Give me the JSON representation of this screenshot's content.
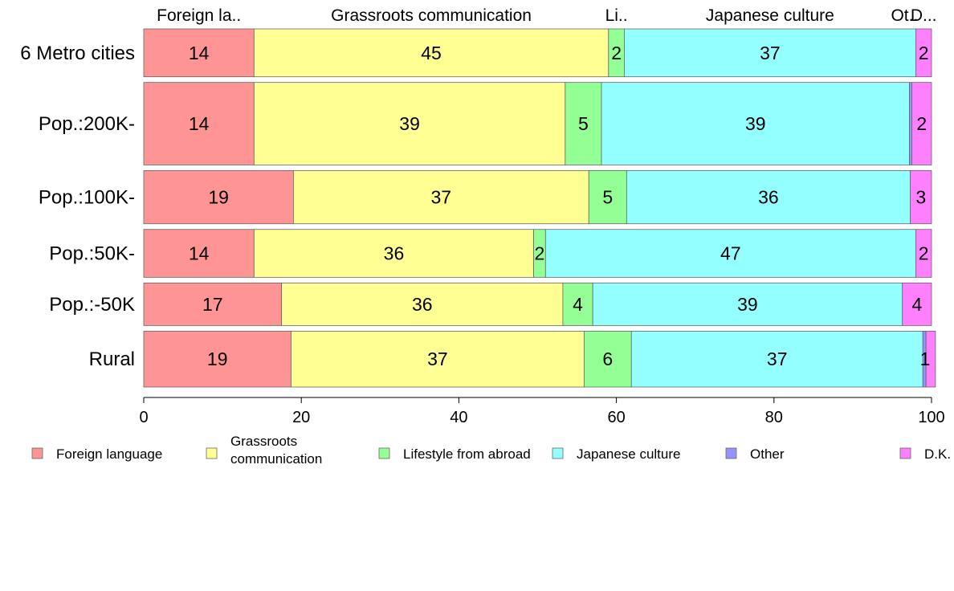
{
  "chart_data": {
    "type": "bar",
    "orientation": "horizontal",
    "stacked": true,
    "categories": [
      "6 Metro cities",
      "Pop.:200K-",
      "Pop.:100K-",
      "Pop.:50K-",
      "Pop.:-50K",
      "Rural"
    ],
    "category_weights": [
      0.9,
      1.55,
      1.0,
      0.9,
      0.8,
      1.05
    ],
    "series": [
      {
        "name": "Foreign language",
        "color": "#ff9494",
        "values": [
          14,
          14,
          19,
          14,
          17.5,
          18.7
        ]
      },
      {
        "name": "Grassroots communication",
        "color": "#ffff94",
        "values": [
          45,
          39.5,
          37.5,
          35.5,
          35.7,
          37.2
        ]
      },
      {
        "name": "Lifestyle from abroad",
        "color": "#94ff94",
        "values": [
          2,
          4.6,
          4.8,
          1.5,
          3.8,
          6
        ]
      },
      {
        "name": "Japanese culture",
        "color": "#94ffff",
        "values": [
          37,
          39.1,
          36,
          47,
          39.3,
          37
        ]
      },
      {
        "name": "Other",
        "color": "#9494ff",
        "values": [
          0,
          0.3,
          0,
          0,
          0,
          0.4
        ]
      },
      {
        "name": "D.K.",
        "color": "#ff80ff",
        "values": [
          2,
          2.5,
          2.7,
          2,
          3.7,
          1.2
        ]
      }
    ],
    "labels": [
      [
        "14",
        "45",
        "2",
        "37",
        "",
        "2"
      ],
      [
        "14",
        "39",
        "5",
        "39",
        "",
        "2"
      ],
      [
        "19",
        "37",
        "5",
        "36",
        "",
        "3"
      ],
      [
        "14",
        "36",
        "2",
        "47",
        "",
        "2"
      ],
      [
        "17",
        "36",
        "4",
        "39",
        "",
        "4"
      ],
      [
        "19",
        "37",
        "6",
        "37",
        "",
        "1"
      ]
    ],
    "top_labels": [
      "Foreign la..",
      "Grassroots communication",
      "Li..",
      "Japanese culture",
      "Ot..",
      "D..."
    ],
    "xlim": [
      0,
      100
    ],
    "xticks": [
      "0",
      "20",
      "40",
      "60",
      "80",
      "100"
    ],
    "legend": {
      "position": "bottom",
      "entries": [
        [
          "Foreign language"
        ],
        [
          "Grassroots",
          "communication"
        ],
        [
          "Lifestyle from abroad"
        ],
        [
          "Japanese culture"
        ],
        [
          "Other"
        ],
        [
          "D.K."
        ]
      ]
    }
  }
}
